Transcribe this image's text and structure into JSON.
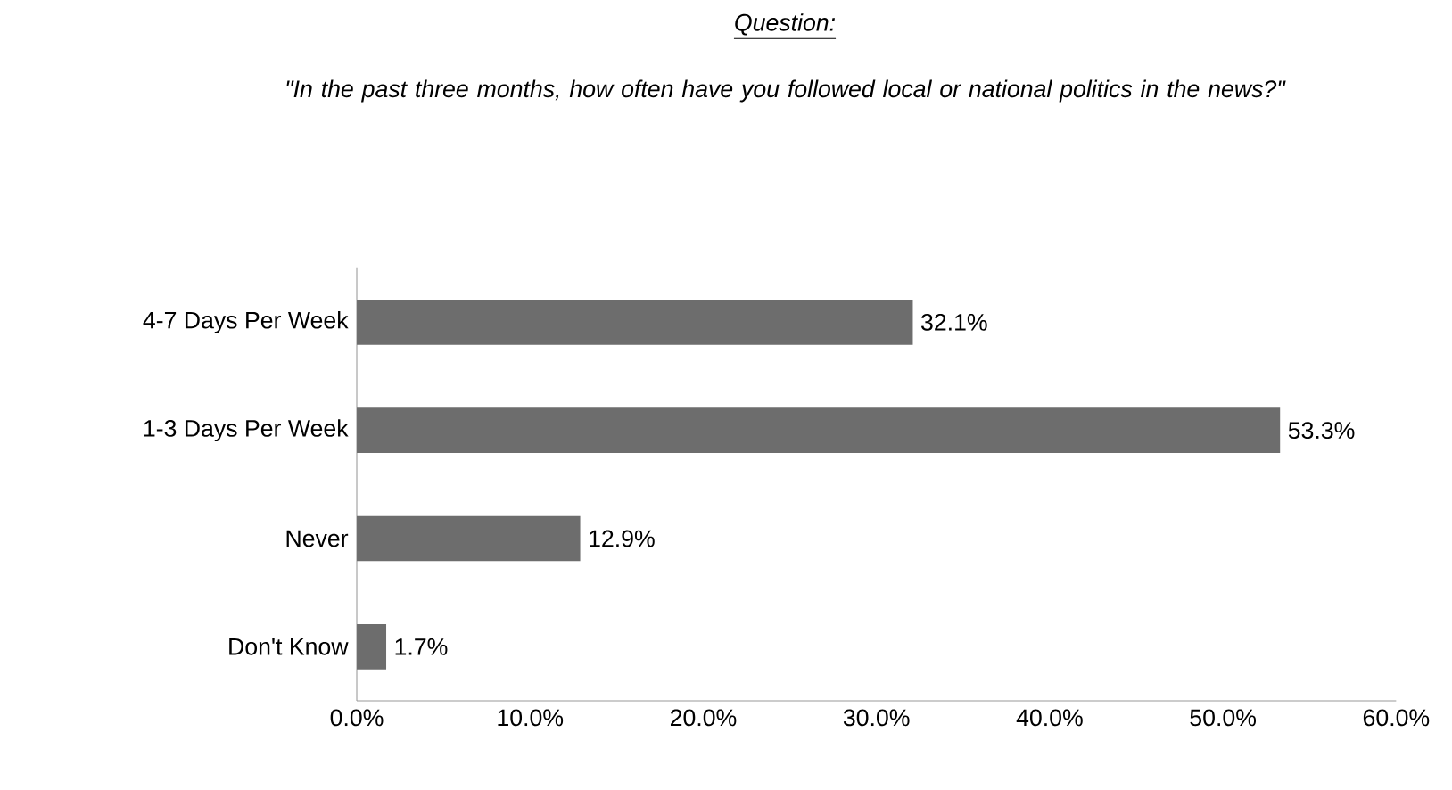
{
  "chart_data": {
    "type": "bar",
    "orientation": "horizontal",
    "title": "Question:",
    "subtitle": "\"In the past three months, how often have you followed local or national politics in the news?\"",
    "categories": [
      "4-7 Days Per Week",
      "1-3 Days Per Week",
      "Never",
      "Don't Know"
    ],
    "values": [
      32.1,
      53.3,
      12.9,
      1.7
    ],
    "value_labels": [
      "32.1%",
      "53.3%",
      "12.9%",
      "1.7%"
    ],
    "color": "#6d6d6d",
    "xlim": [
      0,
      60
    ],
    "xticks": [
      {
        "value": 0,
        "label": "0.0%"
      },
      {
        "value": 10,
        "label": "10.0%"
      },
      {
        "value": 20,
        "label": "20.0%"
      },
      {
        "value": 30,
        "label": "30.0%"
      },
      {
        "value": 40,
        "label": "40.0%"
      },
      {
        "value": 50,
        "label": "50.0%"
      },
      {
        "value": 60,
        "label": "60.0%"
      }
    ]
  }
}
